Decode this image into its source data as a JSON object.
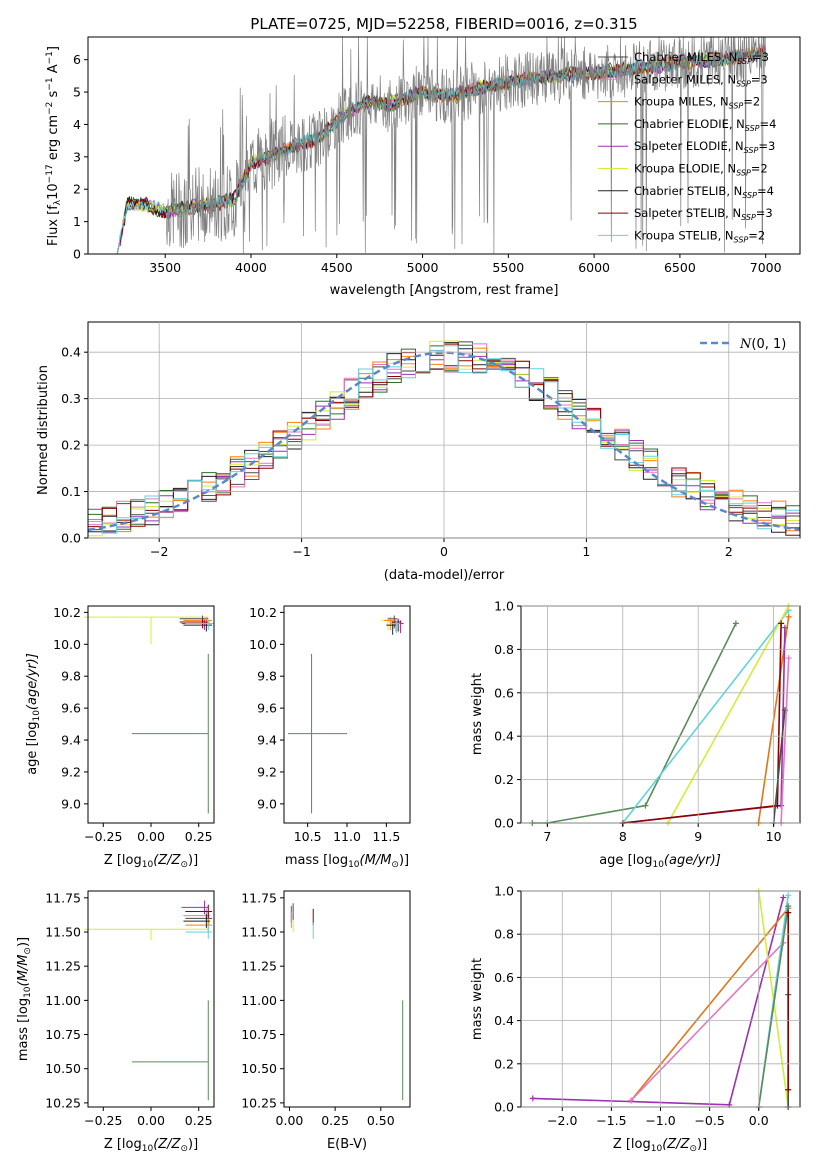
{
  "figure_title": "PLATE=0725, MJD=52258, FIBERID=0016, z=0.315",
  "model_colors": {
    "Chabrier MILES": "#4a4a4a",
    "Salpeter MILES": "#e377c2",
    "Kroupa MILES": "#ff7f0e",
    "Chabrier ELODIE": "#2e6b2e",
    "Salpeter ELODIE": "#9b30b0",
    "Kroupa ELODIE": "#d4ec3c",
    "Chabrier STELIB": "#222222",
    "Salpeter STELIB": "#8b0000",
    "Kroupa STELIB": "#5fd3dc",
    "data": "#808080",
    "gaussian": "#5b87cf",
    "chabrier_elodie_sfh": "#5a8a5a",
    "kroupa_miles_sfh": "#e2751a"
  },
  "chart_data": [
    {
      "id": "spectrum",
      "type": "line",
      "title": "PLATE=0725, MJD=52258, FIBERID=0016, z=0.315",
      "xlabel": "wavelength [Angstrom, rest frame]",
      "ylabel": "Flux [f_λ 10^-17 erg cm^-2 s^-1 A^-1]",
      "xlim": [
        3050,
        7200
      ],
      "ylim": [
        0,
        6.7
      ],
      "xticks": [
        3500,
        4000,
        4500,
        5000,
        5500,
        6000,
        6500,
        7000
      ],
      "yticks": [
        0,
        1,
        2,
        3,
        4,
        5,
        6
      ],
      "legend_placement": "right",
      "series": [
        {
          "name": "Chabrier MILES, N_SSP=3",
          "label_pre": "Chabrier MILES, N",
          "label_sub": "SSP",
          "label_post": "=3"
        },
        {
          "name": "Salpeter MILES, N_SSP=3",
          "label_pre": "Salpeter MILES, N",
          "label_sub": "SSP",
          "label_post": "=3"
        },
        {
          "name": "Kroupa MILES, N_SSP=2",
          "label_pre": "Kroupa MILES, N",
          "label_sub": "SSP",
          "label_post": "=2"
        },
        {
          "name": "Chabrier ELODIE, N_SSP=4",
          "label_pre": "Chabrier ELODIE, N",
          "label_sub": "SSP",
          "label_post": "=4"
        },
        {
          "name": "Salpeter ELODIE, N_SSP=3",
          "label_pre": "Salpeter ELODIE, N",
          "label_sub": "SSP",
          "label_post": "=3"
        },
        {
          "name": "Kroupa ELODIE, N_SSP=2",
          "label_pre": "Kroupa ELODIE, N",
          "label_sub": "SSP",
          "label_post": "=2"
        },
        {
          "name": "Chabrier STELIB, N_SSP=4",
          "label_pre": "Chabrier STELIB, N",
          "label_sub": "SSP",
          "label_post": "=4"
        },
        {
          "name": "Salpeter STELIB, N_SSP=3",
          "label_pre": "Salpeter STELIB, N",
          "label_sub": "SSP",
          "label_post": "=3"
        },
        {
          "name": "Kroupa STELIB, N_SSP=2",
          "label_pre": "Kroupa STELIB, N",
          "label_sub": "SSP",
          "label_post": "=2"
        }
      ],
      "continuum": {
        "x": [
          3220,
          3280,
          3400,
          3500,
          3600,
          3700,
          3800,
          3900,
          3950,
          4000,
          4100,
          4200,
          4300,
          4400,
          4500,
          4600,
          4700,
          4800,
          4900,
          5000,
          5100,
          5200,
          5300,
          5400,
          5500,
          5600,
          5700,
          5800,
          5900,
          6000,
          6100,
          6200,
          6300,
          6400,
          6500,
          6600,
          6700,
          6800,
          6900,
          7000
        ],
        "y": [
          0.0,
          1.55,
          1.5,
          1.3,
          1.4,
          1.5,
          1.55,
          1.7,
          2.2,
          2.8,
          3.0,
          3.2,
          3.4,
          3.6,
          4.1,
          4.5,
          4.7,
          4.6,
          4.8,
          5.0,
          4.9,
          4.9,
          5.1,
          5.2,
          5.3,
          5.4,
          5.45,
          5.5,
          5.55,
          5.6,
          5.65,
          5.7,
          5.75,
          5.85,
          5.9,
          5.95,
          6.0,
          6.05,
          6.15,
          6.2
        ]
      }
    },
    {
      "id": "residuals",
      "type": "line",
      "xlabel": "(data-model)/error",
      "ylabel": "Normed distribution",
      "xlim": [
        -2.5,
        2.5
      ],
      "ylim": [
        0,
        0.465
      ],
      "xticks": [
        -2,
        -1,
        0,
        1,
        2
      ],
      "yticks": [
        0.0,
        0.1,
        0.2,
        0.3,
        0.4
      ],
      "legend_placement": "top-right",
      "gaussian_label": "N(0, 1)",
      "gaussian_label_letter": "N",
      "gaussian_label_args": "(0, 1)",
      "grid": true
    },
    {
      "id": "age_vs_Z",
      "type": "scatter",
      "xlabel_pre": "Z [log",
      "xlabel_sub": "10",
      "xlabel_post": "(Z/Z",
      "ylabel": "age [log10(age/yr)]",
      "xlim": [
        -0.33,
        0.33
      ],
      "ylim": [
        8.88,
        10.24
      ],
      "xticks": [
        -0.25,
        0.0,
        0.25
      ],
      "yticks": [
        9.0,
        9.2,
        9.4,
        9.6,
        9.8,
        10.0,
        10.2
      ]
    },
    {
      "id": "age_vs_mass",
      "type": "scatter",
      "xlabel": "mass [log10(M/M☉)]",
      "xlim": [
        10.2,
        11.8
      ],
      "ylim": [
        8.88,
        10.24
      ],
      "xticks": [
        10.5,
        11.0,
        11.5
      ],
      "yticks": [
        9.0,
        9.2,
        9.4,
        9.6,
        9.8,
        10.0,
        10.2
      ]
    },
    {
      "id": "mass_weight_vs_age",
      "type": "line",
      "xlabel": "age [log10(age/yr)]",
      "ylabel": "mass weight",
      "xlim": [
        6.65,
        10.35
      ],
      "ylim": [
        0,
        1.0
      ],
      "xticks": [
        7,
        8,
        9,
        10
      ],
      "yticks": [
        0.0,
        0.2,
        0.4,
        0.6,
        0.8,
        1.0
      ],
      "grid": true
    },
    {
      "id": "mass_vs_Z",
      "type": "scatter",
      "xlabel_pre": "Z [log",
      "xlabel_sub": "10",
      "xlabel_post": "(Z/Z",
      "ylabel": "mass [log10(M/M☉)]",
      "xlim": [
        -0.33,
        0.33
      ],
      "ylim": [
        10.22,
        11.8
      ],
      "xticks": [
        -0.25,
        0.0,
        0.25
      ],
      "yticks": [
        10.25,
        10.5,
        10.75,
        11.0,
        11.25,
        11.5,
        11.75
      ]
    },
    {
      "id": "mass_vs_EBV",
      "type": "scatter",
      "xlabel": "E(B-V)",
      "xlim": [
        -0.03,
        0.66
      ],
      "ylim": [
        10.22,
        11.8
      ],
      "xticks": [
        0.0,
        0.25,
        0.5
      ],
      "yticks": [
        10.25,
        10.5,
        10.75,
        11.0,
        11.25,
        11.5,
        11.75
      ]
    },
    {
      "id": "mass_weight_vs_Z",
      "type": "line",
      "xlabel_pre": "Z [log",
      "xlabel_sub": "10",
      "xlabel_post": "(Z/Z",
      "ylabel": "mass weight",
      "xlim": [
        -2.42,
        0.42
      ],
      "ylim": [
        0,
        1.0
      ],
      "xticks": [
        -2.0,
        -1.5,
        -1.0,
        -0.5,
        0.0
      ],
      "yticks": [
        0.0,
        0.2,
        0.4,
        0.6,
        0.8,
        1.0
      ],
      "grid": true
    }
  ],
  "axis_texts": {
    "spectrum_ylabel": "Flux [f",
    "age_ylabel": "age  [log",
    "age_ylabel_post": "(age/yr)]",
    "mass_xlabel": "mass [log",
    "mass_ylabel": "mass [log",
    "mw_age_xlabel": "age  [log",
    "mw_age_xlabel_post": "(age/yr)]"
  }
}
